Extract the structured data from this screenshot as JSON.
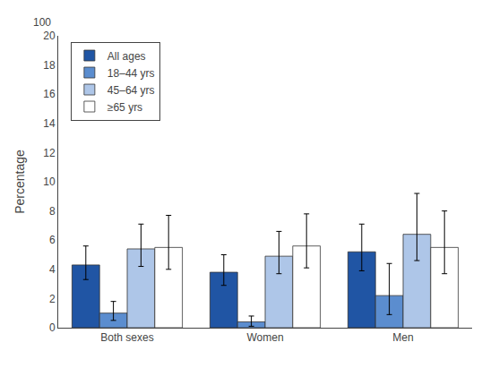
{
  "chart_data": {
    "type": "bar",
    "categories": [
      "Both sexes",
      "Women",
      "Men"
    ],
    "series": [
      {
        "name": "All ages",
        "color": "#2055a4",
        "values": [
          4.3,
          3.8,
          5.2
        ],
        "error_upper": [
          1.3,
          1.2,
          1.9
        ],
        "error_lower": [
          1.0,
          0.9,
          1.3
        ]
      },
      {
        "name": "18–44 yrs",
        "color": "#5b8dcf",
        "values": [
          1.0,
          0.4,
          2.2
        ],
        "error_upper": [
          0.8,
          0.4,
          2.2
        ],
        "error_lower": [
          0.5,
          0.3,
          1.3
        ]
      },
      {
        "name": "45–64 yrs",
        "color": "#aec6e8",
        "values": [
          5.4,
          4.9,
          6.4
        ],
        "error_upper": [
          1.7,
          1.7,
          2.8
        ],
        "error_lower": [
          1.2,
          1.2,
          1.8
        ]
      },
      {
        "name": "≥65 yrs",
        "color": "#ffffff",
        "values": [
          5.5,
          5.6,
          5.5
        ],
        "error_upper": [
          2.2,
          2.2,
          2.5
        ],
        "error_lower": [
          1.5,
          1.5,
          1.8
        ]
      }
    ],
    "ylabel": "Percentage",
    "ylim": [
      0,
      20
    ],
    "yticks": [
      0,
      2,
      4,
      6,
      8,
      10,
      12,
      14,
      16,
      18,
      20
    ],
    "annotations": [
      {
        "text": "100"
      }
    ],
    "grid": false,
    "legend": "upper left"
  }
}
